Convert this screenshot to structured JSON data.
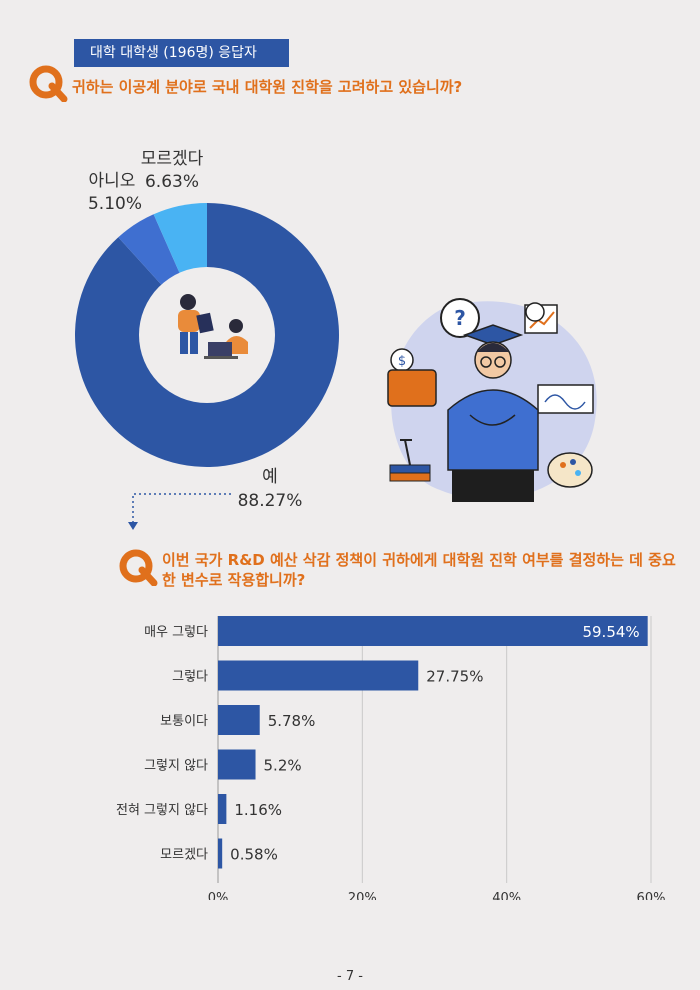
{
  "header": {
    "tag_label": "대학 대학생 (196명) 응답자"
  },
  "question1": {
    "text": "귀하는 이공계 분야로 국내 대학원 진학을 고려하고 있습니까?"
  },
  "question2": {
    "line1": "이번 국가 R&D 예산 삭감 정책이 귀하에게 대학원 진학 여부를 결정하는 데 중요",
    "line2": "한 변수로 작용합니까?"
  },
  "colors": {
    "accent_orange": "#e0701c",
    "primary_blue": "#2d56a4",
    "light_blue": "#49b3f3",
    "mid_blue": "#3f6fd0"
  },
  "icons": [
    "q-logo-icon",
    "people-at-laptop-illustration",
    "student-thinking-illustration",
    "dotted-arrow-icon"
  ],
  "chart_data": [
    {
      "type": "pie",
      "variant": "donut",
      "categories": [
        "예",
        "아니오",
        "모르겠다"
      ],
      "values": [
        88.27,
        5.1,
        6.63
      ],
      "labels": [
        "88.27%",
        "5.10%",
        "6.63%"
      ],
      "colors": [
        "#2d56a4",
        "#3f6fd0",
        "#49b3f3"
      ]
    },
    {
      "type": "bar",
      "orientation": "horizontal",
      "categories": [
        "매우 그렇다",
        "그렇다",
        "보통이다",
        "그렇지 않다",
        "전혀 그렇지 않다",
        "모르겠다"
      ],
      "values": [
        59.54,
        27.75,
        5.78,
        5.2,
        1.16,
        0.58
      ],
      "labels": [
        "59.54%",
        "27.75%",
        "5.78%",
        "5.2%",
        "1.16%",
        "0.58%"
      ],
      "xlim": [
        0,
        60
      ],
      "ticks": [
        "0%",
        "20%",
        "40%",
        "60%"
      ],
      "grid": true
    }
  ],
  "footer": {
    "page": "- 7 -"
  }
}
